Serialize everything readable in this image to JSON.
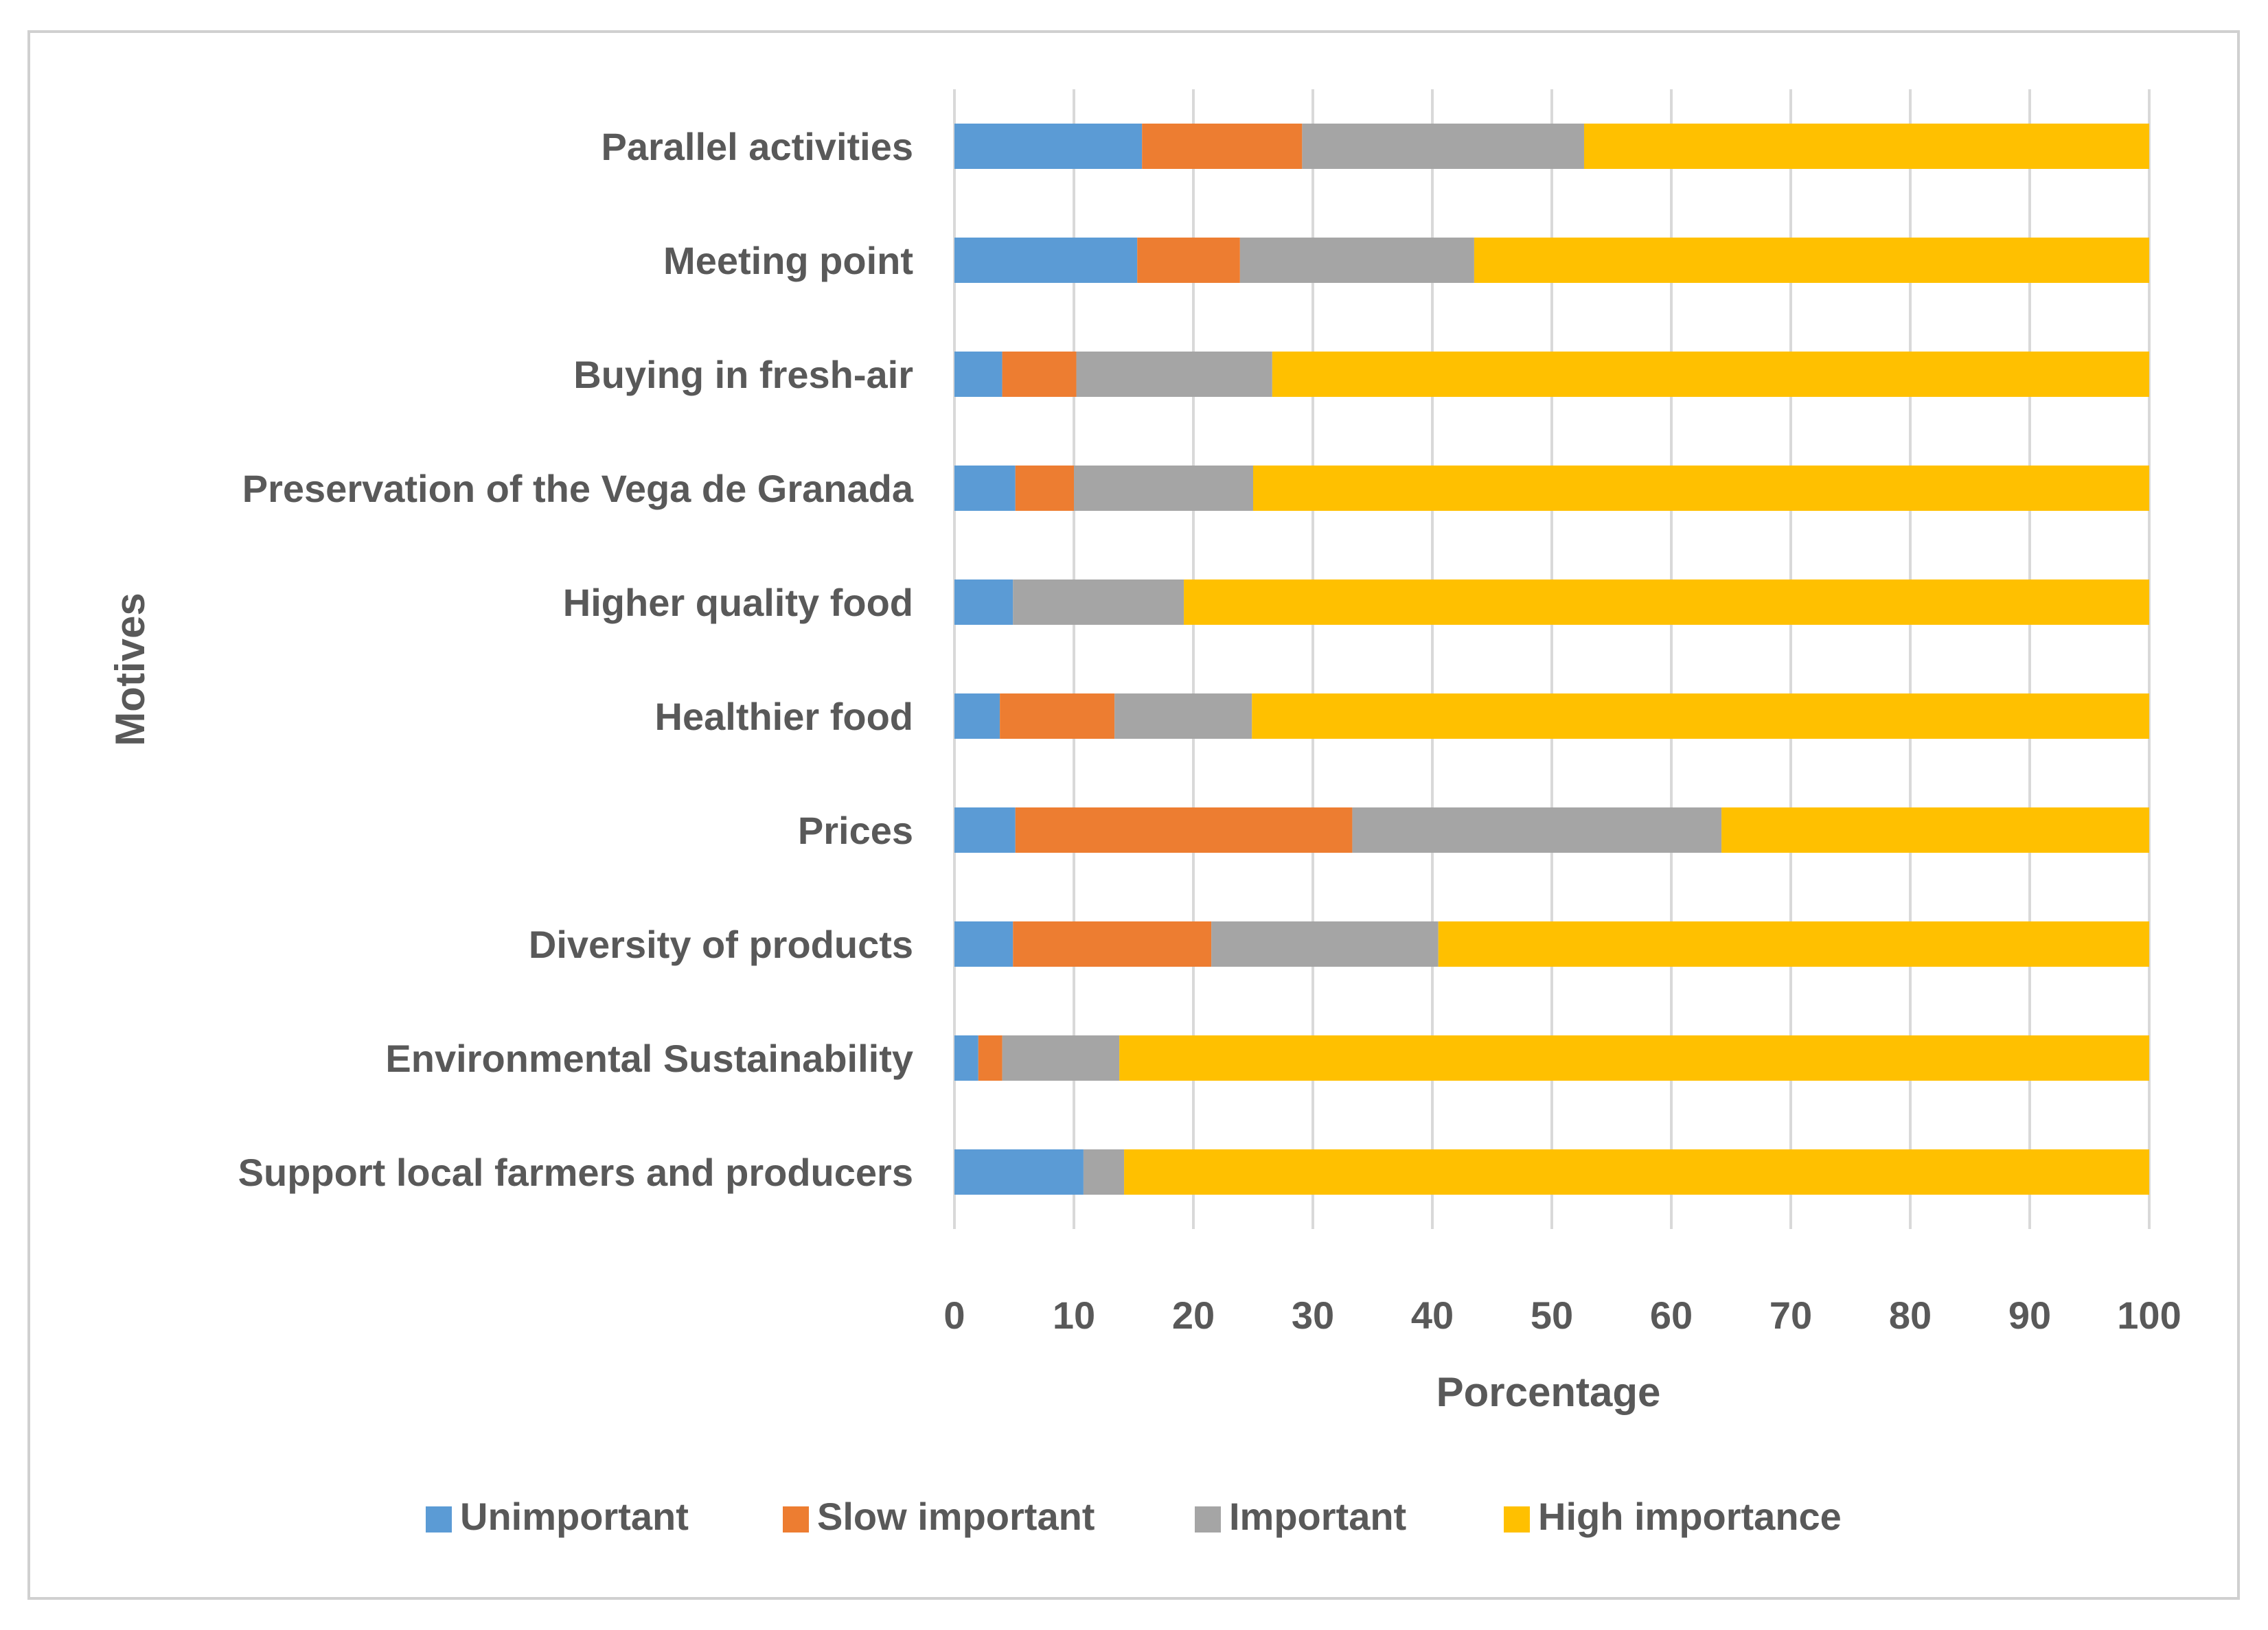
{
  "chart_data": {
    "type": "bar",
    "orientation": "horizontal",
    "stacked": true,
    "title": "",
    "xlabel": "Porcentage",
    "ylabel": "Motives",
    "xlim": [
      0,
      100
    ],
    "xticks": [
      0,
      10,
      20,
      30,
      40,
      50,
      60,
      70,
      80,
      90,
      100
    ],
    "grid": true,
    "legend_position": "bottom",
    "categories": [
      "Parallel activities",
      "Meeting point",
      "Buying in fresh-air",
      "Preservation of the Vega de Granada",
      "Higher quality food",
      "Healthier food",
      "Prices",
      "Diversity of products",
      "Environmental Sustainability",
      "Support local farmers and producers"
    ],
    "series": [
      {
        "name": "Unimportant",
        "color": "#5b9bd5",
        "values": [
          15.7,
          15.3,
          4.0,
          5.1,
          4.9,
          3.8,
          5.1,
          4.9,
          2.0,
          10.8
        ]
      },
      {
        "name": "Slow important",
        "color": "#ed7d31",
        "values": [
          13.4,
          8.6,
          6.2,
          4.9,
          0.0,
          9.6,
          28.2,
          16.6,
          2.0,
          0.0
        ]
      },
      {
        "name": "Important",
        "color": "#a5a5a5",
        "values": [
          23.6,
          19.6,
          16.4,
          15.0,
          14.3,
          11.5,
          30.9,
          19.0,
          9.8,
          3.4
        ]
      },
      {
        "name": "High importance",
        "color": "#ffc000",
        "values": [
          47.3,
          56.5,
          73.4,
          75.0,
          80.8,
          75.1,
          35.8,
          59.5,
          86.2,
          85.8
        ]
      }
    ]
  }
}
